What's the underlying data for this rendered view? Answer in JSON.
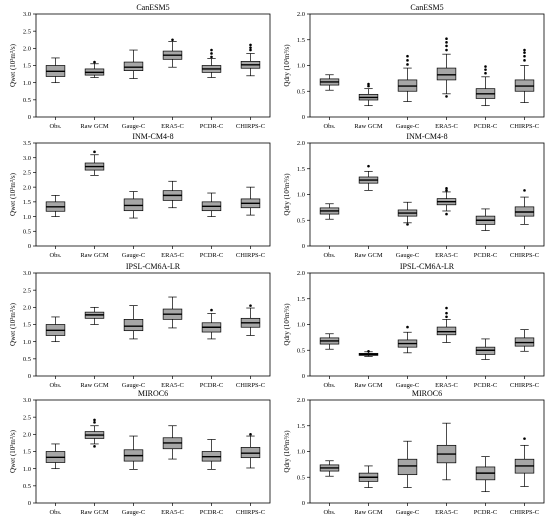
{
  "chart_data": [
    {
      "type": "box",
      "title": "CanESM5",
      "ylabel": "Qwet (10³m³/s)",
      "ylim": [
        0,
        3
      ],
      "yticks": [
        "0",
        "0.5",
        "1.0",
        "1.5",
        "2.0",
        "2.5",
        "3.0"
      ],
      "categories": [
        "Obs.",
        "Raw GCM",
        "Gauge-C",
        "ERA5-C",
        "PCDR-C",
        "CHIRPS-C"
      ],
      "boxes": [
        {
          "min": 1.0,
          "q1": 1.18,
          "median": 1.33,
          "q3": 1.5,
          "max": 1.72,
          "outliers": []
        },
        {
          "min": 1.15,
          "q1": 1.22,
          "median": 1.3,
          "q3": 1.4,
          "max": 1.55,
          "outliers": [
            1.6
          ]
        },
        {
          "min": 1.12,
          "q1": 1.35,
          "median": 1.45,
          "q3": 1.6,
          "max": 1.95,
          "outliers": []
        },
        {
          "min": 1.45,
          "q1": 1.68,
          "median": 1.8,
          "q3": 1.92,
          "max": 2.2,
          "outliers": [
            2.25
          ]
        },
        {
          "min": 1.15,
          "q1": 1.3,
          "median": 1.4,
          "q3": 1.5,
          "max": 1.7,
          "outliers": [
            1.75,
            1.85,
            1.95
          ]
        },
        {
          "min": 1.2,
          "q1": 1.42,
          "median": 1.52,
          "q3": 1.62,
          "max": 1.85,
          "outliers": [
            1.95,
            2.02,
            2.1
          ]
        }
      ]
    },
    {
      "type": "box",
      "title": "CanESM5",
      "ylabel": "Qdry (10³m³/s)",
      "ylim": [
        0,
        2
      ],
      "yticks": [
        "0",
        "0.5",
        "1.0",
        "1.5",
        "2.0"
      ],
      "categories": [
        "Obs.",
        "Raw GCM",
        "Gauge-C",
        "ERA5-C",
        "PCDR-C",
        "CHIRPS-C"
      ],
      "boxes": [
        {
          "min": 0.52,
          "q1": 0.62,
          "median": 0.68,
          "q3": 0.74,
          "max": 0.82,
          "outliers": []
        },
        {
          "min": 0.22,
          "q1": 0.33,
          "median": 0.38,
          "q3": 0.44,
          "max": 0.55,
          "outliers": [
            0.6,
            0.64
          ]
        },
        {
          "min": 0.3,
          "q1": 0.5,
          "median": 0.6,
          "q3": 0.72,
          "max": 0.95,
          "outliers": [
            1.02,
            1.1,
            1.18
          ]
        },
        {
          "min": 0.45,
          "q1": 0.72,
          "median": 0.82,
          "q3": 0.95,
          "max": 1.22,
          "outliers": [
            0.4,
            1.3,
            1.38,
            1.45,
            1.52
          ]
        },
        {
          "min": 0.22,
          "q1": 0.36,
          "median": 0.45,
          "q3": 0.55,
          "max": 0.78,
          "outliers": [
            0.85,
            0.92,
            0.98
          ]
        },
        {
          "min": 0.28,
          "q1": 0.5,
          "median": 0.6,
          "q3": 0.72,
          "max": 1.0,
          "outliers": [
            1.1,
            1.18,
            1.25,
            1.3
          ]
        }
      ]
    },
    {
      "type": "box",
      "title": "INM-CM4-8",
      "ylabel": "Qwet (10³m³/s)",
      "ylim": [
        0,
        3.5
      ],
      "yticks": [
        "0",
        "0.5",
        "1.0",
        "1.5",
        "2.0",
        "2.5",
        "3.0",
        "3.5"
      ],
      "categories": [
        "Obs.",
        "Raw GCM",
        "Gauge-C",
        "ERA5-C",
        "PCDR-C",
        "CHIRPS-C"
      ],
      "boxes": [
        {
          "min": 1.0,
          "q1": 1.18,
          "median": 1.33,
          "q3": 1.5,
          "max": 1.72,
          "outliers": []
        },
        {
          "min": 2.4,
          "q1": 2.58,
          "median": 2.7,
          "q3": 2.82,
          "max": 3.1,
          "outliers": [
            3.2
          ]
        },
        {
          "min": 0.95,
          "q1": 1.2,
          "median": 1.38,
          "q3": 1.6,
          "max": 1.85,
          "outliers": []
        },
        {
          "min": 1.3,
          "q1": 1.55,
          "median": 1.72,
          "q3": 1.88,
          "max": 2.2,
          "outliers": []
        },
        {
          "min": 1.0,
          "q1": 1.2,
          "median": 1.35,
          "q3": 1.5,
          "max": 1.8,
          "outliers": []
        },
        {
          "min": 1.05,
          "q1": 1.3,
          "median": 1.45,
          "q3": 1.6,
          "max": 2.0,
          "outliers": []
        }
      ]
    },
    {
      "type": "box",
      "title": "INM-CM4-8",
      "ylabel": "Qdry (10³m³/s)",
      "ylim": [
        0,
        2
      ],
      "yticks": [
        "0",
        "0.5",
        "1.0",
        "1.5",
        "2.0"
      ],
      "categories": [
        "Obs.",
        "Raw GCM",
        "Gauge-C",
        "ERA5-C",
        "PCDR-C",
        "CHIRPS-C"
      ],
      "boxes": [
        {
          "min": 0.52,
          "q1": 0.62,
          "median": 0.68,
          "q3": 0.74,
          "max": 0.82,
          "outliers": []
        },
        {
          "min": 1.08,
          "q1": 1.22,
          "median": 1.28,
          "q3": 1.34,
          "max": 1.45,
          "outliers": [
            1.55
          ]
        },
        {
          "min": 0.45,
          "q1": 0.58,
          "median": 0.64,
          "q3": 0.7,
          "max": 0.85,
          "outliers": [
            0.42
          ]
        },
        {
          "min": 0.68,
          "q1": 0.8,
          "median": 0.86,
          "q3": 0.92,
          "max": 1.05,
          "outliers": [
            0.62,
            1.08,
            1.12
          ]
        },
        {
          "min": 0.3,
          "q1": 0.42,
          "median": 0.5,
          "q3": 0.58,
          "max": 0.72,
          "outliers": []
        },
        {
          "min": 0.42,
          "q1": 0.58,
          "median": 0.66,
          "q3": 0.76,
          "max": 0.95,
          "outliers": [
            1.08
          ]
        }
      ]
    },
    {
      "type": "box",
      "title": "IPSL-CM6A-LR",
      "ylabel": "Qwet (10³m³/s)",
      "ylim": [
        0,
        3
      ],
      "yticks": [
        "0",
        "0.5",
        "1.0",
        "1.5",
        "2.0",
        "2.5",
        "3.0"
      ],
      "categories": [
        "Obs.",
        "Raw GCM",
        "Gauge-C",
        "ERA5-C",
        "PCDR-C",
        "CHIRPS-C"
      ],
      "boxes": [
        {
          "min": 1.0,
          "q1": 1.18,
          "median": 1.33,
          "q3": 1.5,
          "max": 1.72,
          "outliers": []
        },
        {
          "min": 1.5,
          "q1": 1.68,
          "median": 1.78,
          "q3": 1.86,
          "max": 2.0,
          "outliers": []
        },
        {
          "min": 1.08,
          "q1": 1.32,
          "median": 1.45,
          "q3": 1.65,
          "max": 2.05,
          "outliers": []
        },
        {
          "min": 1.4,
          "q1": 1.65,
          "median": 1.8,
          "q3": 1.95,
          "max": 2.3,
          "outliers": []
        },
        {
          "min": 1.08,
          "q1": 1.28,
          "median": 1.42,
          "q3": 1.55,
          "max": 1.82,
          "outliers": [
            1.92
          ]
        },
        {
          "min": 1.18,
          "q1": 1.42,
          "median": 1.55,
          "q3": 1.68,
          "max": 1.98,
          "outliers": [
            2.05
          ]
        }
      ]
    },
    {
      "type": "box",
      "title": "IPSL-CM6A-LR",
      "ylabel": "Qdry (10³m³/s)",
      "ylim": [
        0,
        2
      ],
      "yticks": [
        "0",
        "0.5",
        "1.0",
        "1.5",
        "2.0"
      ],
      "categories": [
        "Obs.",
        "Raw GCM",
        "Gauge-C",
        "ERA5-C",
        "PCDR-C",
        "CHIRPS-C"
      ],
      "boxes": [
        {
          "min": 0.52,
          "q1": 0.62,
          "median": 0.68,
          "q3": 0.74,
          "max": 0.82,
          "outliers": []
        },
        {
          "min": 0.38,
          "q1": 0.4,
          "median": 0.42,
          "q3": 0.44,
          "max": 0.47,
          "outliers": [
            0.48
          ]
        },
        {
          "min": 0.45,
          "q1": 0.56,
          "median": 0.63,
          "q3": 0.7,
          "max": 0.85,
          "outliers": [
            0.95
          ]
        },
        {
          "min": 0.65,
          "q1": 0.8,
          "median": 0.86,
          "q3": 0.95,
          "max": 1.1,
          "outliers": [
            1.15,
            1.22,
            1.32
          ]
        },
        {
          "min": 0.32,
          "q1": 0.42,
          "median": 0.5,
          "q3": 0.56,
          "max": 0.72,
          "outliers": []
        },
        {
          "min": 0.48,
          "q1": 0.58,
          "median": 0.65,
          "q3": 0.74,
          "max": 0.9,
          "outliers": []
        }
      ]
    },
    {
      "type": "box",
      "title": "MIROC6",
      "ylabel": "Qwet (10³m³/s)",
      "ylim": [
        0,
        3
      ],
      "yticks": [
        "0",
        "0.5",
        "1.0",
        "1.5",
        "2.0",
        "2.5",
        "3.0"
      ],
      "categories": [
        "Obs.",
        "Raw GCM",
        "Gauge-C",
        "ERA5-C",
        "PCDR-C",
        "CHIRPS-C"
      ],
      "boxes": [
        {
          "min": 1.0,
          "q1": 1.18,
          "median": 1.33,
          "q3": 1.5,
          "max": 1.72,
          "outliers": []
        },
        {
          "min": 1.72,
          "q1": 1.88,
          "median": 1.98,
          "q3": 2.08,
          "max": 2.25,
          "outliers": [
            1.65,
            2.35,
            2.42
          ]
        },
        {
          "min": 0.98,
          "q1": 1.22,
          "median": 1.38,
          "q3": 1.55,
          "max": 1.95,
          "outliers": []
        },
        {
          "min": 1.28,
          "q1": 1.58,
          "median": 1.75,
          "q3": 1.9,
          "max": 2.25,
          "outliers": []
        },
        {
          "min": 0.98,
          "q1": 1.22,
          "median": 1.35,
          "q3": 1.5,
          "max": 1.85,
          "outliers": []
        },
        {
          "min": 1.02,
          "q1": 1.32,
          "median": 1.45,
          "q3": 1.62,
          "max": 1.95,
          "outliers": [
            2.0
          ]
        }
      ]
    },
    {
      "type": "box",
      "title": "MIROC6",
      "ylabel": "Qdry (10³m³/s)",
      "ylim": [
        0,
        2
      ],
      "yticks": [
        "0",
        "0.5",
        "1.0",
        "1.5",
        "2.0"
      ],
      "categories": [
        "Obs.",
        "Raw GCM",
        "Gauge-C",
        "ERA5-C",
        "PCDR-C",
        "CHIRPS-C"
      ],
      "boxes": [
        {
          "min": 0.52,
          "q1": 0.62,
          "median": 0.68,
          "q3": 0.74,
          "max": 0.82,
          "outliers": []
        },
        {
          "min": 0.3,
          "q1": 0.42,
          "median": 0.5,
          "q3": 0.58,
          "max": 0.72,
          "outliers": []
        },
        {
          "min": 0.3,
          "q1": 0.55,
          "median": 0.72,
          "q3": 0.85,
          "max": 1.2,
          "outliers": []
        },
        {
          "min": 0.45,
          "q1": 0.78,
          "median": 0.95,
          "q3": 1.12,
          "max": 1.55,
          "outliers": []
        },
        {
          "min": 0.22,
          "q1": 0.45,
          "median": 0.58,
          "q3": 0.7,
          "max": 0.9,
          "outliers": []
        },
        {
          "min": 0.32,
          "q1": 0.58,
          "median": 0.72,
          "q3": 0.85,
          "max": 1.12,
          "outliers": [
            1.25
          ]
        }
      ]
    }
  ]
}
